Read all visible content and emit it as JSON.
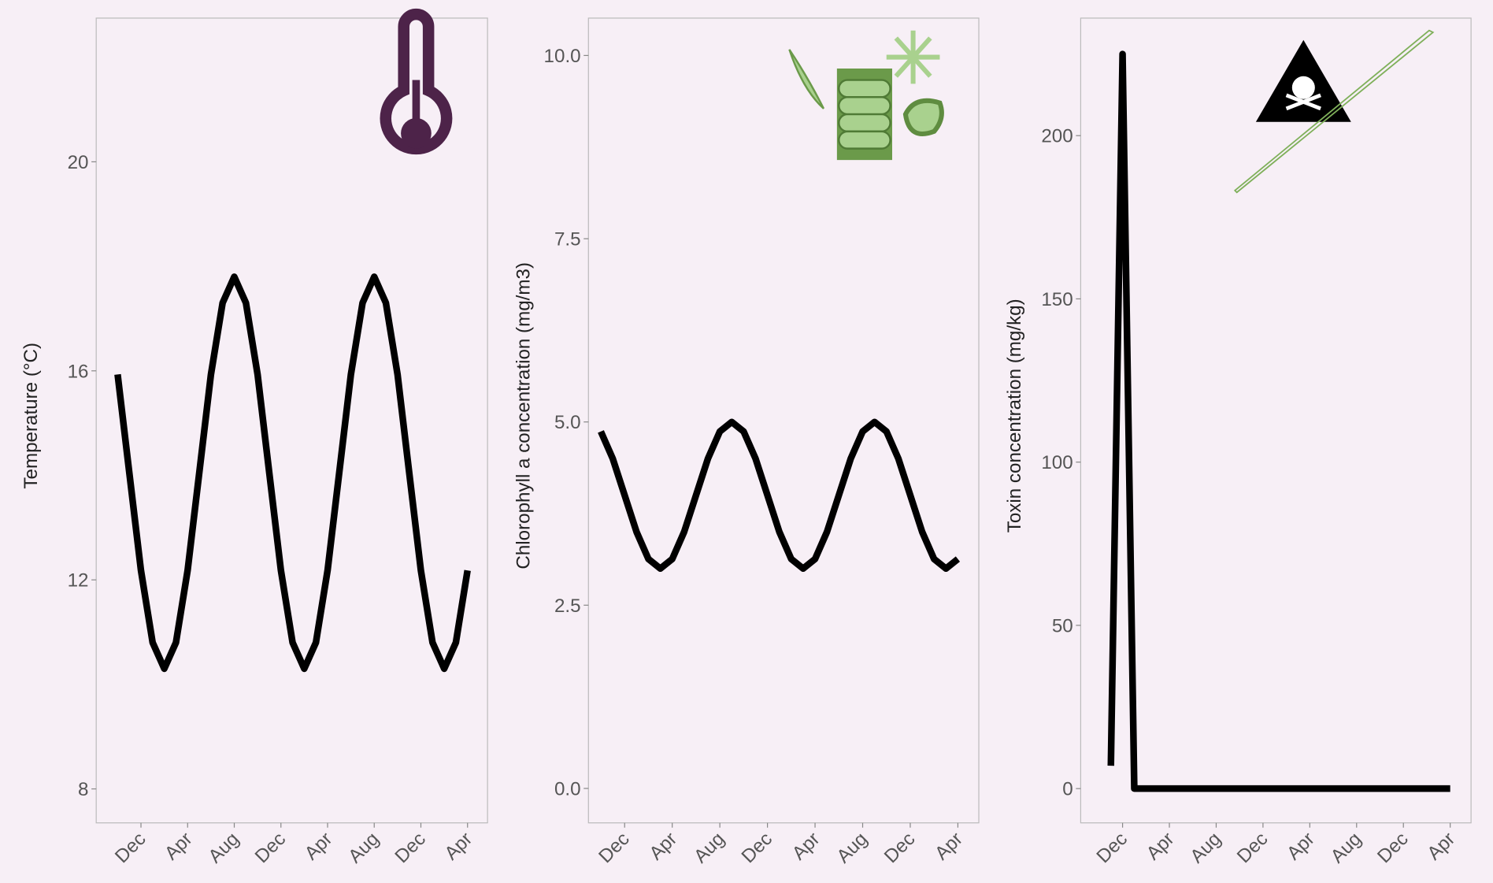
{
  "chart_data": [
    {
      "type": "line",
      "y_label": "Temperature (°C)",
      "color": "#000000",
      "categories": [
        null,
        null,
        "Dec",
        null,
        null,
        null,
        "Apr",
        null,
        null,
        null,
        "Aug",
        null,
        null,
        null,
        "Dec",
        null,
        null,
        null,
        "Apr",
        null,
        null,
        null,
        "Aug",
        null,
        null,
        null,
        "Dec",
        null,
        null,
        null,
        "Apr"
      ],
      "values": [
        15.93,
        14.05,
        12.18,
        10.8,
        10.3,
        10.8,
        12.18,
        14.05,
        15.93,
        17.3,
        17.8,
        17.3,
        15.93,
        14.05,
        12.18,
        10.8,
        10.3,
        10.8,
        12.18,
        14.05,
        15.93,
        17.3,
        17.8,
        17.3,
        15.93,
        14.05,
        12.18,
        10.8,
        10.3,
        10.8,
        12.18
      ],
      "ylim": [
        7.35,
        22.75
      ],
      "yticks": [
        8,
        12,
        16,
        20
      ]
    },
    {
      "type": "line",
      "y_label": "Chlorophyll a concentration (mg/m3)",
      "color": "#000000",
      "categories": [
        null,
        null,
        "Dec",
        null,
        null,
        null,
        "Apr",
        null,
        null,
        null,
        "Aug",
        null,
        null,
        null,
        "Dec",
        null,
        null,
        null,
        "Apr",
        null,
        null,
        null,
        "Aug",
        null,
        null,
        null,
        "Dec",
        null,
        null,
        null,
        "Apr"
      ],
      "values": [
        4.87,
        4.5,
        4,
        3.5,
        3.13,
        3,
        3.13,
        3.5,
        4,
        4.5,
        4.87,
        5,
        4.87,
        4.5,
        4,
        3.5,
        3.13,
        3,
        3.13,
        3.5,
        4,
        4.5,
        4.87,
        5,
        4.87,
        4.5,
        4,
        3.5,
        3.13,
        3,
        3.13
      ],
      "ylim": [
        -0.47,
        10.51
      ],
      "yticks": [
        {
          "value": 0,
          "label": "0.0"
        },
        2.5,
        {
          "value": 5,
          "label": "5.0"
        },
        7.5,
        {
          "value": 10,
          "label": "10.0"
        }
      ]
    },
    {
      "type": "line",
      "y_label": "Toxin concentration (mg/kg)",
      "color": "#000000",
      "categories": [
        null,
        "Dec",
        null,
        null,
        null,
        "Apr",
        null,
        null,
        null,
        "Aug",
        null,
        null,
        null,
        "Dec",
        null,
        null,
        null,
        "Apr",
        null,
        null,
        null,
        "Aug",
        null,
        null,
        null,
        "Dec",
        null,
        null,
        null,
        "Apr"
      ],
      "values": [
        7,
        225,
        0,
        0,
        0,
        0,
        0,
        0,
        0,
        0,
        0,
        0,
        0,
        0,
        0,
        0,
        0,
        0,
        0,
        0,
        0,
        0,
        0,
        0,
        0,
        0,
        0,
        0,
        0,
        0
      ],
      "ylim": [
        -10.5,
        236
      ],
      "yticks": [
        0,
        50,
        100,
        150,
        200
      ]
    }
  ]
}
